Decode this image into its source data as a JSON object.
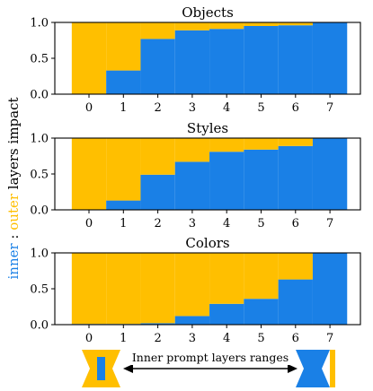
{
  "colors": {
    "inner": "#1a80e6",
    "outer": "#ffbf00"
  },
  "y_label": {
    "inner": "inner",
    "sep": " : ",
    "outer": "outer",
    "rest": " layers impact"
  },
  "range_note": "Inner prompt layers ranges",
  "chart_data": [
    {
      "type": "bar",
      "stacked": true,
      "title": "Objects",
      "categories": [
        "0",
        "1",
        "2",
        "3",
        "4",
        "5",
        "6",
        "7"
      ],
      "ylim": [
        0,
        1
      ],
      "yticks": [
        "0.0",
        "0.5",
        "1.0"
      ],
      "series": [
        {
          "name": "inner",
          "values": [
            0.0,
            0.33,
            0.77,
            0.89,
            0.91,
            0.95,
            0.96,
            1.0
          ]
        },
        {
          "name": "outer",
          "values": [
            1.0,
            0.67,
            0.23,
            0.11,
            0.09,
            0.05,
            0.04,
            0.0
          ]
        }
      ]
    },
    {
      "type": "bar",
      "stacked": true,
      "title": "Styles",
      "categories": [
        "0",
        "1",
        "2",
        "3",
        "4",
        "5",
        "6",
        "7"
      ],
      "ylim": [
        0,
        1
      ],
      "yticks": [
        "0.0",
        "0.5",
        "1.0"
      ],
      "series": [
        {
          "name": "inner",
          "values": [
            0.0,
            0.13,
            0.49,
            0.67,
            0.81,
            0.84,
            0.89,
            1.0
          ]
        },
        {
          "name": "outer",
          "values": [
            1.0,
            0.87,
            0.51,
            0.33,
            0.19,
            0.16,
            0.11,
            0.0
          ]
        }
      ]
    },
    {
      "type": "bar",
      "stacked": true,
      "title": "Colors",
      "categories": [
        "0",
        "1",
        "2",
        "3",
        "4",
        "5",
        "6",
        "7"
      ],
      "ylim": [
        0,
        1
      ],
      "yticks": [
        "0.0",
        "0.5",
        "1.0"
      ],
      "series": [
        {
          "name": "inner",
          "values": [
            0.01,
            0.01,
            0.02,
            0.12,
            0.29,
            0.36,
            0.63,
            1.0
          ]
        },
        {
          "name": "outer",
          "values": [
            0.99,
            0.99,
            0.98,
            0.88,
            0.71,
            0.64,
            0.37,
            0.0
          ]
        }
      ]
    }
  ]
}
